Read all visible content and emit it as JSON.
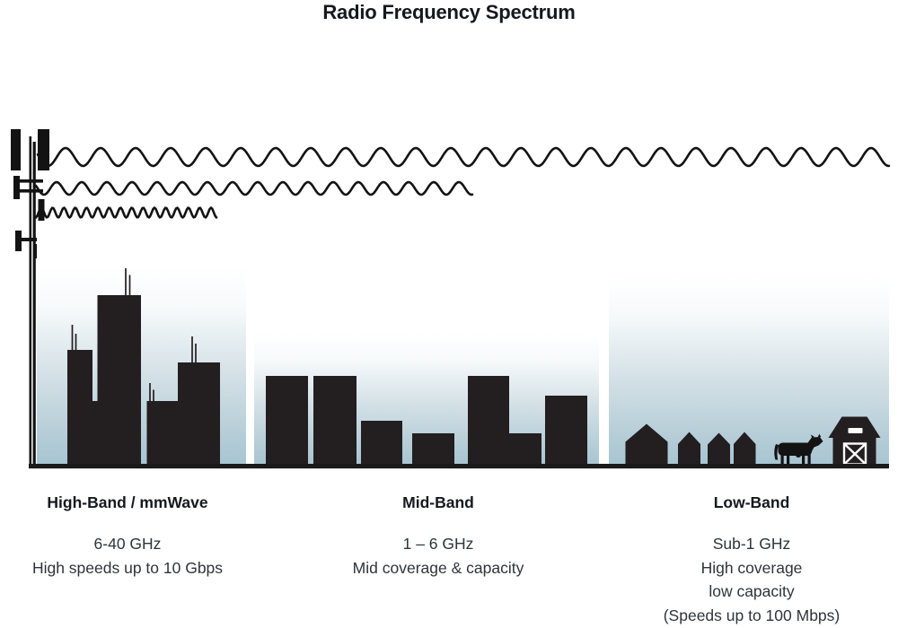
{
  "title": "Radio Frequency Spectrum",
  "bands": [
    {
      "name": "High-Band / mmWave",
      "frequency": "6-40 GHz",
      "details": [
        "High speeds up to 10 Gbps"
      ],
      "scene": "dense-city-skyscrapers-with-antennas",
      "wave": "shortest wavelength, shortest reach"
    },
    {
      "name": "Mid-Band",
      "frequency": "1 – 6 GHz",
      "details": [
        "Mid coverage & capacity"
      ],
      "scene": "mid-rise-town-buildings",
      "wave": "medium wavelength, medium reach"
    },
    {
      "name": "Low-Band",
      "frequency": "Sub-1 GHz",
      "details": [
        "High coverage",
        "low capacity",
        "(Speeds up to 100 Mbps)"
      ],
      "scene": "rural-farm-houses-cow-barn",
      "wave": "longest wavelength, longest reach"
    }
  ],
  "colors": {
    "ink": "#131313",
    "silhouette": "#231e1f",
    "sky_top": "#ffffff",
    "sky_bottom": "#a7c5d1",
    "text": "#303439",
    "heading": "#15181e"
  }
}
